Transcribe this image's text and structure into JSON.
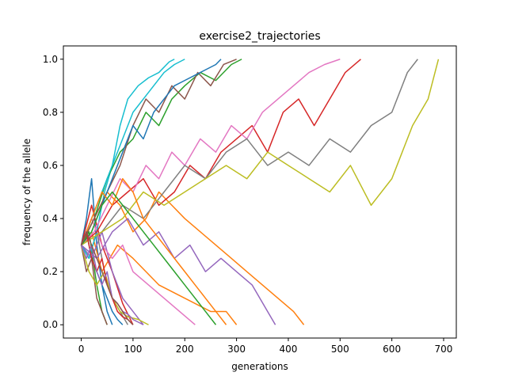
{
  "chart_data": {
    "type": "line",
    "title": "exercise2_trajectories",
    "xlabel": "generations",
    "ylabel": "frequency of the allele",
    "xlim": [
      -34.5,
      724.5
    ],
    "ylim": [
      -0.05,
      1.05
    ],
    "xticks": [
      0,
      100,
      200,
      300,
      400,
      500,
      600,
      700
    ],
    "xtick_labels": [
      "0",
      "100",
      "200",
      "300",
      "400",
      "500",
      "600",
      "700"
    ],
    "yticks": [
      0.0,
      0.2,
      0.4,
      0.6,
      0.8,
      1.0
    ],
    "ytick_labels": [
      "0.0",
      "0.2",
      "0.4",
      "0.6",
      "0.8",
      "1.0"
    ],
    "grid": false,
    "legend": "none",
    "palette": [
      "#1f77b4",
      "#ff7f0e",
      "#2ca02c",
      "#d62728",
      "#9467bd",
      "#8c564b",
      "#e377c2",
      "#7f7f7f",
      "#bcbd22",
      "#17becf"
    ],
    "series": [
      {
        "x": [
          0,
          10,
          20,
          30,
          40,
          50,
          60
        ],
        "y": [
          0.3,
          0.4,
          0.55,
          0.3,
          0.15,
          0.05,
          0.0
        ]
      },
      {
        "x": [
          0,
          20,
          40,
          70,
          100,
          150,
          200,
          250,
          280,
          300
        ],
        "y": [
          0.3,
          0.35,
          0.2,
          0.3,
          0.25,
          0.15,
          0.1,
          0.05,
          0.05,
          0.0
        ]
      },
      {
        "x": [
          0,
          15,
          30,
          40,
          50
        ],
        "y": [
          0.3,
          0.35,
          0.15,
          0.05,
          0.0
        ]
      },
      {
        "x": [
          0,
          20,
          40,
          60,
          80,
          100
        ],
        "y": [
          0.3,
          0.45,
          0.3,
          0.2,
          0.08,
          0.0
        ]
      },
      {
        "x": [
          0,
          20,
          40,
          60,
          80,
          100,
          120
        ],
        "y": [
          0.3,
          0.25,
          0.35,
          0.2,
          0.1,
          0.05,
          0.0
        ]
      },
      {
        "x": [
          0,
          10,
          20,
          30,
          40,
          50
        ],
        "y": [
          0.3,
          0.2,
          0.25,
          0.1,
          0.05,
          0.0
        ]
      },
      {
        "x": [
          0,
          20,
          40,
          60,
          80,
          100,
          130,
          160,
          190,
          220
        ],
        "y": [
          0.3,
          0.4,
          0.3,
          0.25,
          0.3,
          0.2,
          0.15,
          0.1,
          0.05,
          0.0
        ]
      },
      {
        "x": [
          0,
          15,
          30,
          45,
          60,
          75,
          90
        ],
        "y": [
          0.3,
          0.25,
          0.35,
          0.2,
          0.1,
          0.05,
          0.0
        ]
      },
      {
        "x": [
          0,
          15,
          30,
          45,
          60,
          75,
          90,
          110,
          130
        ],
        "y": [
          0.3,
          0.2,
          0.15,
          0.2,
          0.1,
          0.05,
          0.03,
          0.02,
          0.0
        ]
      },
      {
        "x": [
          0,
          15,
          30,
          45,
          60,
          75,
          90,
          110,
          130,
          150,
          170,
          180
        ],
        "y": [
          0.3,
          0.25,
          0.35,
          0.5,
          0.6,
          0.75,
          0.85,
          0.9,
          0.93,
          0.95,
          0.99,
          1.0
        ]
      },
      {
        "x": [
          0,
          10,
          20,
          30,
          40,
          50,
          60,
          70,
          80
        ],
        "y": [
          0.3,
          0.35,
          0.25,
          0.2,
          0.15,
          0.1,
          0.05,
          0.02,
          0.0
        ]
      },
      {
        "x": [
          0,
          25,
          50,
          75,
          100,
          125,
          150,
          175,
          200,
          230,
          260,
          290,
          320,
          350,
          380,
          410,
          430
        ],
        "y": [
          0.3,
          0.4,
          0.5,
          0.45,
          0.35,
          0.4,
          0.5,
          0.45,
          0.4,
          0.35,
          0.3,
          0.25,
          0.2,
          0.15,
          0.1,
          0.05,
          0.0
        ]
      },
      {
        "x": [
          0,
          25,
          50,
          75,
          100,
          125,
          150,
          175,
          200,
          230,
          260,
          290,
          310
        ],
        "y": [
          0.3,
          0.4,
          0.55,
          0.65,
          0.7,
          0.8,
          0.75,
          0.85,
          0.9,
          0.95,
          0.92,
          0.98,
          1.0
        ]
      },
      {
        "x": [
          0,
          30,
          60,
          90,
          120,
          150,
          180,
          210,
          240,
          270,
          300,
          330,
          360,
          390,
          420,
          450,
          480,
          510,
          540
        ],
        "y": [
          0.3,
          0.35,
          0.45,
          0.5,
          0.55,
          0.45,
          0.5,
          0.6,
          0.55,
          0.65,
          0.7,
          0.75,
          0.65,
          0.8,
          0.85,
          0.75,
          0.85,
          0.95,
          1.0
        ]
      },
      {
        "x": [
          0,
          30,
          60,
          90,
          120,
          150,
          180,
          210,
          240,
          270,
          300,
          330,
          360,
          375
        ],
        "y": [
          0.3,
          0.25,
          0.35,
          0.4,
          0.3,
          0.35,
          0.25,
          0.3,
          0.2,
          0.25,
          0.2,
          0.15,
          0.05,
          0.0
        ]
      },
      {
        "x": [
          0,
          25,
          50,
          75,
          100,
          125,
          150,
          175,
          200,
          225,
          250,
          275,
          300
        ],
        "y": [
          0.3,
          0.4,
          0.5,
          0.6,
          0.75,
          0.85,
          0.8,
          0.9,
          0.85,
          0.95,
          0.9,
          0.98,
          1.0
        ]
      },
      {
        "x": [
          0,
          25,
          50,
          75,
          100,
          125,
          150,
          175,
          200,
          230,
          260,
          290,
          320,
          350,
          380,
          410,
          440,
          470,
          500
        ],
        "y": [
          0.3,
          0.35,
          0.45,
          0.55,
          0.5,
          0.6,
          0.55,
          0.65,
          0.6,
          0.7,
          0.65,
          0.75,
          0.7,
          0.8,
          0.85,
          0.9,
          0.95,
          0.98,
          1.0
        ]
      },
      {
        "x": [
          0,
          40,
          80,
          120,
          160,
          200,
          240,
          280,
          320,
          360,
          400,
          440,
          480,
          520,
          560,
          600,
          630,
          650
        ],
        "y": [
          0.3,
          0.35,
          0.45,
          0.4,
          0.5,
          0.6,
          0.55,
          0.65,
          0.7,
          0.6,
          0.65,
          0.6,
          0.7,
          0.65,
          0.75,
          0.8,
          0.95,
          1.0
        ]
      },
      {
        "x": [
          0,
          40,
          80,
          120,
          160,
          200,
          240,
          280,
          320,
          360,
          400,
          440,
          480,
          520,
          560,
          600,
          640,
          670,
          690
        ],
        "y": [
          0.3,
          0.35,
          0.4,
          0.5,
          0.45,
          0.5,
          0.55,
          0.6,
          0.55,
          0.65,
          0.6,
          0.55,
          0.5,
          0.6,
          0.45,
          0.55,
          0.75,
          0.85,
          1.0
        ]
      },
      {
        "x": [
          0,
          20,
          40,
          60,
          80,
          100,
          120,
          140,
          160,
          180,
          200
        ],
        "y": [
          0.3,
          0.4,
          0.5,
          0.6,
          0.7,
          0.8,
          0.85,
          0.9,
          0.95,
          0.98,
          1.0
        ]
      },
      {
        "x": [
          0,
          20,
          40,
          60,
          80,
          100,
          120,
          140,
          160,
          180,
          200,
          230,
          260,
          270
        ],
        "y": [
          0.3,
          0.35,
          0.45,
          0.55,
          0.65,
          0.75,
          0.7,
          0.8,
          0.85,
          0.9,
          0.92,
          0.95,
          0.98,
          1.0
        ]
      },
      {
        "x": [
          0,
          20,
          40,
          60,
          80,
          100,
          120,
          140,
          160,
          180,
          200,
          220,
          240,
          260,
          280
        ],
        "y": [
          0.3,
          0.4,
          0.5,
          0.45,
          0.55,
          0.5,
          0.4,
          0.35,
          0.3,
          0.25,
          0.2,
          0.15,
          0.1,
          0.05,
          0.0
        ]
      },
      {
        "x": [
          0,
          20,
          40,
          60,
          80,
          100,
          120,
          140,
          160,
          180,
          200,
          220,
          240,
          260
        ],
        "y": [
          0.3,
          0.35,
          0.45,
          0.5,
          0.45,
          0.4,
          0.35,
          0.3,
          0.25,
          0.2,
          0.15,
          0.1,
          0.05,
          0.0
        ]
      },
      {
        "x": [
          0,
          10,
          20,
          30,
          40,
          50,
          60,
          70,
          80,
          90,
          100
        ],
        "y": [
          0.3,
          0.35,
          0.25,
          0.2,
          0.25,
          0.15,
          0.1,
          0.05,
          0.03,
          0.02,
          0.0
        ]
      },
      {
        "x": [
          0,
          10,
          20,
          30,
          40,
          50,
          60,
          70,
          80,
          90,
          100,
          110,
          120
        ],
        "y": [
          0.3,
          0.25,
          0.3,
          0.2,
          0.15,
          0.2,
          0.1,
          0.08,
          0.05,
          0.04,
          0.02,
          0.01,
          0.0
        ]
      },
      {
        "x": [
          0,
          10,
          20,
          30,
          40,
          50,
          60,
          70,
          80,
          90,
          100
        ],
        "y": [
          0.3,
          0.35,
          0.3,
          0.25,
          0.2,
          0.15,
          0.1,
          0.08,
          0.05,
          0.02,
          0.0
        ]
      }
    ]
  }
}
